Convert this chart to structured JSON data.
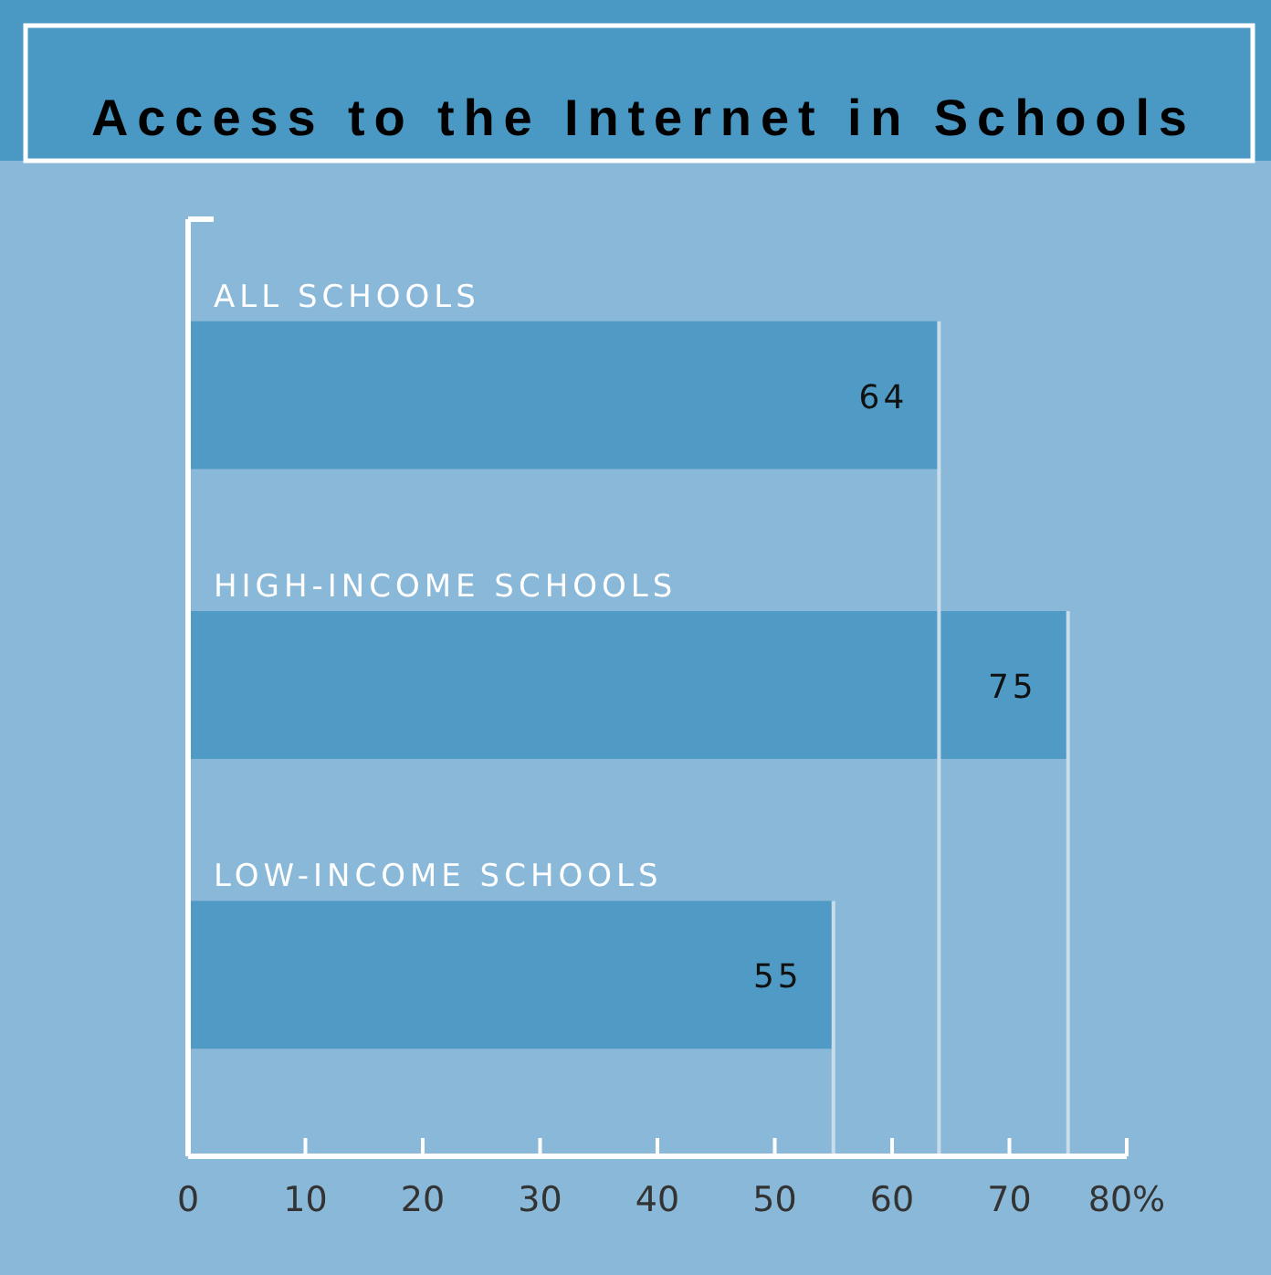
{
  "chart_data": {
    "type": "bar",
    "orientation": "horizontal",
    "title": "Access to the Internet in Schools",
    "categories": [
      "ALL SCHOOLS",
      "HIGH-INCOME SCHOOLS",
      "LOW-INCOME SCHOOLS"
    ],
    "values": [
      64,
      75,
      55
    ],
    "color": "#4f9bc6",
    "data_labels": true,
    "xlim": [
      0,
      80
    ],
    "xticks": [
      0,
      10,
      20,
      30,
      40,
      50,
      60,
      70,
      {
        "value": 80,
        "label": "80%"
      }
    ],
    "ref_lines": [
      {
        "axis": "x",
        "value": 64,
        "color": "#c8dcea"
      },
      {
        "axis": "x",
        "value": 75,
        "color": "#c8dcea"
      },
      {
        "axis": "x",
        "value": 55,
        "color": "#c8dcea"
      }
    ],
    "grid": false,
    "legend": false
  }
}
